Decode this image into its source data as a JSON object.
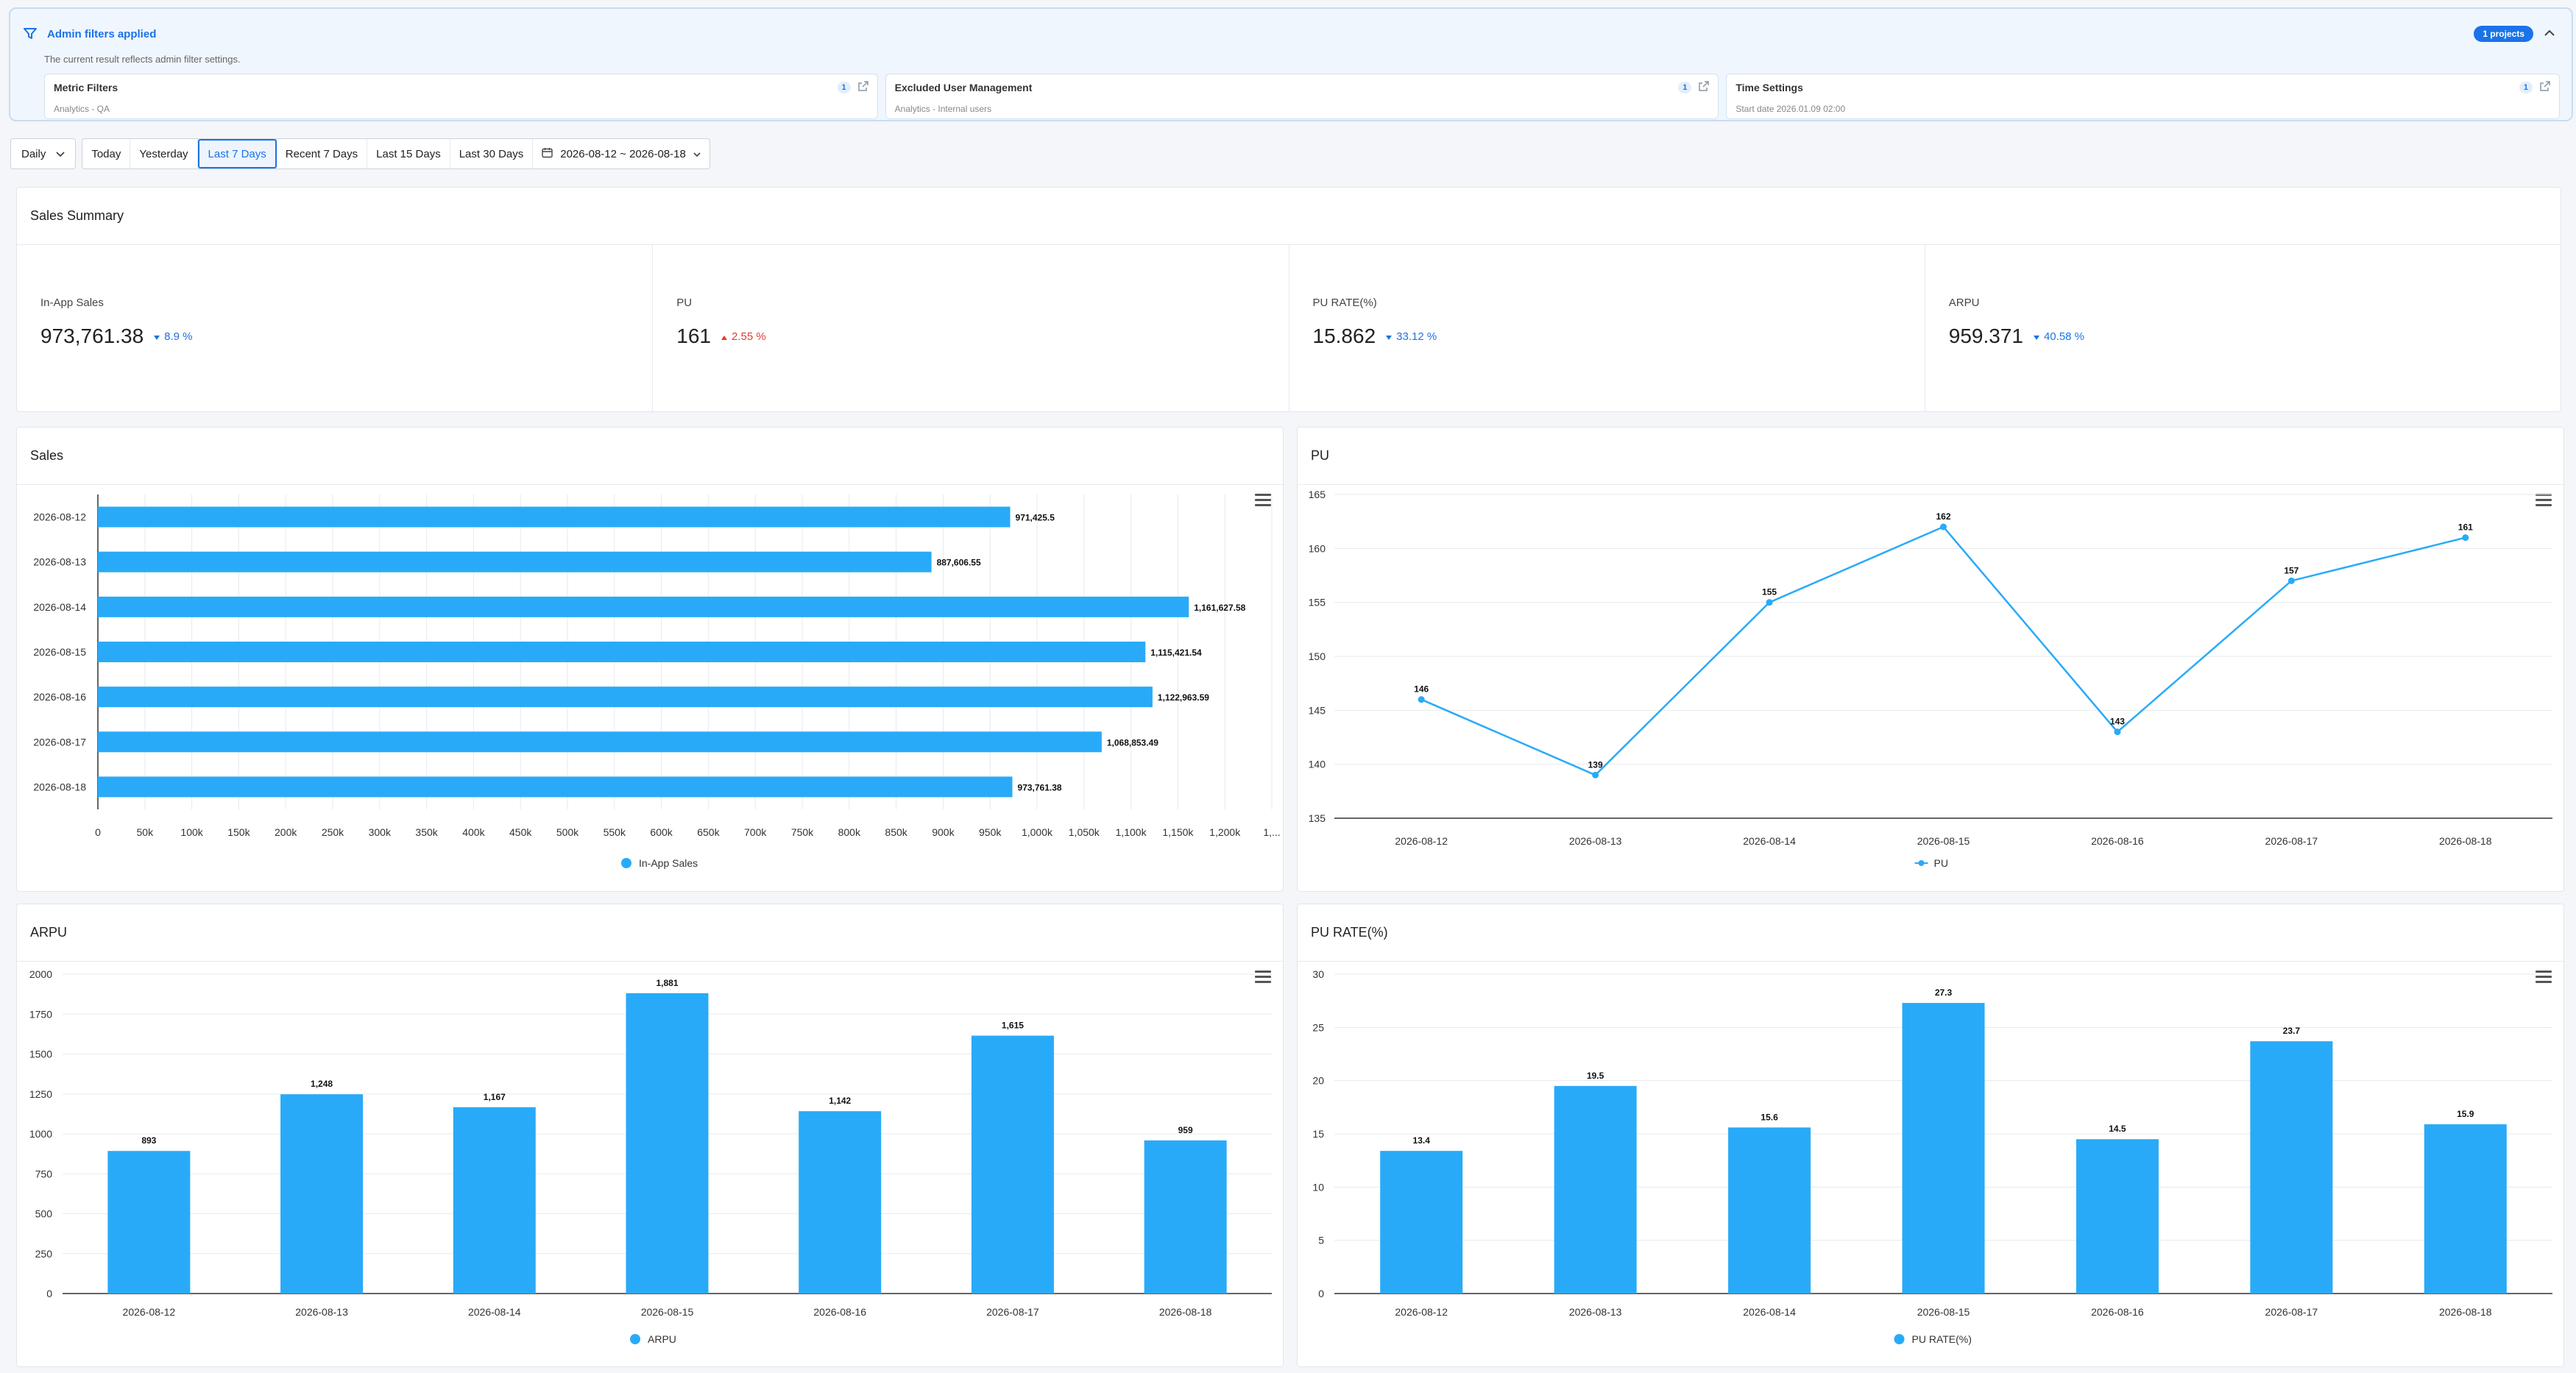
{
  "banner": {
    "title": "Admin filters applied",
    "description": "The current result reflects admin filter settings.",
    "projects_badge": "1 projects",
    "cards": [
      {
        "title": "Metric Filters",
        "subtitle": "Analytics - QA",
        "count": "1"
      },
      {
        "title": "Excluded User Management",
        "subtitle": "Analytics - Internal users",
        "count": "1"
      },
      {
        "title": "Time Settings",
        "subtitle": "Start date 2026.01.09 02:00",
        "count": "1"
      }
    ]
  },
  "toolbar": {
    "granularity": "Daily",
    "ranges": [
      "Today",
      "Yesterday",
      "Last 7 Days",
      "Recent 7 Days",
      "Last 15 Days",
      "Last 30 Days"
    ],
    "active_range": "Last 7 Days",
    "date_range": "2026-08-12 ~ 2026-08-18"
  },
  "summary": {
    "title": "Sales Summary",
    "kpis": [
      {
        "label": "In-App Sales",
        "value": "973,761.38",
        "delta": "8.9 %",
        "direction": "down"
      },
      {
        "label": "PU",
        "value": "161",
        "delta": "2.55 %",
        "direction": "up"
      },
      {
        "label": "PU RATE(%)",
        "value": "15.862",
        "delta": "33.12 %",
        "direction": "down"
      },
      {
        "label": "ARPU",
        "value": "959.371",
        "delta": "40.58 %",
        "direction": "down"
      }
    ]
  },
  "colors": {
    "accent": "#1a73e8",
    "bar": "#29aaf8",
    "up": "#e53935",
    "down": "#1a73e8"
  },
  "chart_data": [
    {
      "id": "sales",
      "title": "Sales",
      "type": "bar",
      "orientation": "horizontal",
      "categories": [
        "2026-08-12",
        "2026-08-13",
        "2026-08-14",
        "2026-08-15",
        "2026-08-16",
        "2026-08-17",
        "2026-08-18"
      ],
      "series": [
        {
          "name": "In-App Sales",
          "values": [
            971425.5,
            887606.55,
            1161627.58,
            1115421.54,
            1122963.59,
            1068853.49,
            973761.38
          ]
        }
      ],
      "data_labels": [
        "971,425.5",
        "887,606.55",
        "1,161,627.58",
        "1,115,421.54",
        "1,122,963.59",
        "1,068,853.49",
        "973,761.38"
      ],
      "xlim": [
        0,
        1250000
      ],
      "x_ticks": [
        "0",
        "50k",
        "100k",
        "150k",
        "200k",
        "250k",
        "300k",
        "350k",
        "400k",
        "450k",
        "500k",
        "550k",
        "600k",
        "650k",
        "700k",
        "750k",
        "800k",
        "850k",
        "900k",
        "950k",
        "1,000k",
        "1,050k",
        "1,100k",
        "1,150k",
        "1,200k",
        "1,..."
      ],
      "legend": "bottom-center",
      "grid": true
    },
    {
      "id": "pu",
      "title": "PU",
      "type": "line",
      "categories": [
        "2026-08-12",
        "2026-08-13",
        "2026-08-14",
        "2026-08-15",
        "2026-08-16",
        "2026-08-17",
        "2026-08-18"
      ],
      "series": [
        {
          "name": "PU",
          "values": [
            146,
            139,
            155,
            162,
            143,
            157,
            161
          ]
        }
      ],
      "ylim": [
        135,
        165
      ],
      "y_ticks": [
        "135",
        "140",
        "145",
        "150",
        "155",
        "160",
        "165"
      ],
      "legend": "bottom-center",
      "grid": true
    },
    {
      "id": "arpu",
      "title": "ARPU",
      "type": "bar",
      "categories": [
        "2026-08-12",
        "2026-08-13",
        "2026-08-14",
        "2026-08-15",
        "2026-08-16",
        "2026-08-17",
        "2026-08-18"
      ],
      "series": [
        {
          "name": "ARPU",
          "values": [
            893,
            1248,
            1167,
            1881,
            1142,
            1615,
            959
          ]
        }
      ],
      "data_labels": [
        "893",
        "1,248",
        "1,167",
        "1,881",
        "1,142",
        "1,615",
        "959"
      ],
      "ylim": [
        0,
        2000
      ],
      "y_ticks": [
        "0",
        "250",
        "500",
        "750",
        "1000",
        "1250",
        "1500",
        "1750",
        "2000"
      ],
      "legend": "bottom-center",
      "grid": true
    },
    {
      "id": "purate",
      "title": "PU RATE(%)",
      "type": "bar",
      "categories": [
        "2026-08-12",
        "2026-08-13",
        "2026-08-14",
        "2026-08-15",
        "2026-08-16",
        "2026-08-17",
        "2026-08-18"
      ],
      "series": [
        {
          "name": "PU RATE(%)",
          "values": [
            13.4,
            19.5,
            15.6,
            27.3,
            14.5,
            23.7,
            15.9
          ]
        }
      ],
      "data_labels": [
        "13.4",
        "19.5",
        "15.6",
        "27.3",
        "14.5",
        "23.7",
        "15.9"
      ],
      "ylim": [
        0,
        30
      ],
      "y_ticks": [
        "0",
        "5",
        "10",
        "15",
        "20",
        "25",
        "30"
      ],
      "legend": "bottom-center",
      "grid": true
    }
  ]
}
